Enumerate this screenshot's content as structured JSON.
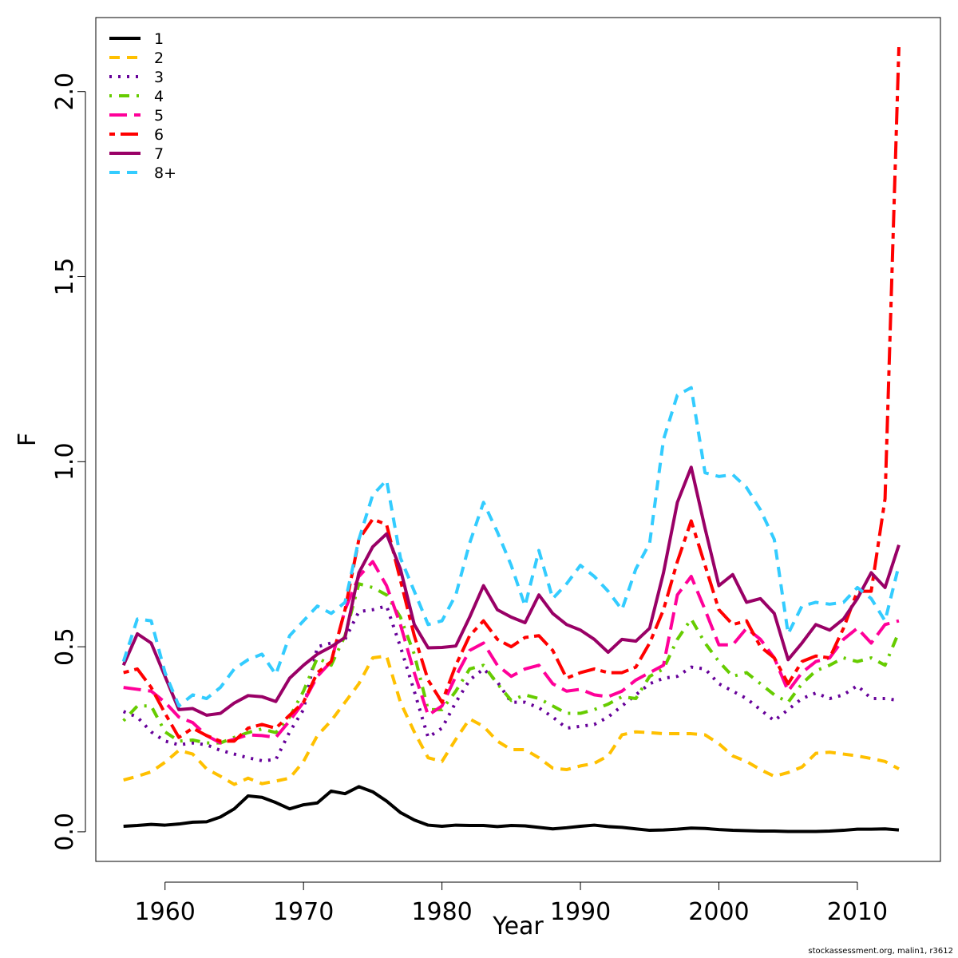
{
  "footer": "stockassessment.org, malin1, r3612",
  "chart_data": {
    "type": "line",
    "xlabel": "Year",
    "ylabel": "F",
    "xlim": [
      1955,
      2016
    ],
    "ylim": [
      -0.08,
      2.2
    ],
    "xticks": [
      1960,
      1970,
      1980,
      1990,
      2000,
      2010
    ],
    "yticks": [
      0.0,
      0.5,
      1.0,
      1.5,
      2.0
    ],
    "ytick_labels": [
      "0.0",
      "0.5",
      "1.0",
      "1.5",
      "2.0"
    ],
    "legend_position": "top-left",
    "grid": false,
    "x": [
      1957,
      1958,
      1959,
      1960,
      1961,
      1962,
      1963,
      1964,
      1965,
      1966,
      1967,
      1968,
      1969,
      1970,
      1971,
      1972,
      1973,
      1974,
      1975,
      1976,
      1977,
      1978,
      1979,
      1980,
      1981,
      1982,
      1983,
      1984,
      1985,
      1986,
      1987,
      1988,
      1989,
      1990,
      1991,
      1992,
      1993,
      1994,
      1995,
      1996,
      1997,
      1998,
      1999,
      2000,
      2001,
      2002,
      2003,
      2004,
      2005,
      2006,
      2007,
      2008,
      2009,
      2010,
      2011,
      2012,
      2013
    ],
    "series": [
      {
        "name": "1",
        "color": "#000000",
        "dash": "solid",
        "values": [
          0.015,
          0.017,
          0.02,
          0.018,
          0.021,
          0.026,
          0.027,
          0.04,
          0.062,
          0.097,
          0.093,
          0.079,
          0.062,
          0.073,
          0.078,
          0.11,
          0.103,
          0.122,
          0.108,
          0.083,
          0.052,
          0.032,
          0.018,
          0.015,
          0.018,
          0.017,
          0.017,
          0.014,
          0.017,
          0.016,
          0.012,
          0.008,
          0.011,
          0.015,
          0.018,
          0.014,
          0.012,
          0.008,
          0.004,
          0.005,
          0.007,
          0.01,
          0.009,
          0.006,
          0.004,
          0.003,
          0.002,
          0.002,
          0.001,
          0.001,
          0.001,
          0.002,
          0.004,
          0.007,
          0.007,
          0.008,
          0.005
        ]
      },
      {
        "name": "2",
        "color": "#ffc000",
        "dash": "dash",
        "values": [
          0.14,
          0.15,
          0.162,
          0.188,
          0.22,
          0.21,
          0.17,
          0.15,
          0.128,
          0.145,
          0.13,
          0.137,
          0.145,
          0.19,
          0.26,
          0.3,
          0.35,
          0.4,
          0.47,
          0.475,
          0.35,
          0.27,
          0.2,
          0.19,
          0.25,
          0.305,
          0.285,
          0.245,
          0.222,
          0.222,
          0.2,
          0.172,
          0.168,
          0.178,
          0.185,
          0.205,
          0.262,
          0.27,
          0.268,
          0.265,
          0.265,
          0.265,
          0.262,
          0.238,
          0.205,
          0.19,
          0.168,
          0.15,
          0.16,
          0.175,
          0.212,
          0.215,
          0.21,
          0.205,
          0.198,
          0.19,
          0.17
        ]
      },
      {
        "name": "3",
        "color": "#660099",
        "dash": "dot",
        "values": [
          0.325,
          0.31,
          0.27,
          0.245,
          0.235,
          0.24,
          0.235,
          0.22,
          0.21,
          0.2,
          0.192,
          0.195,
          0.27,
          0.33,
          0.5,
          0.51,
          0.52,
          0.595,
          0.6,
          0.61,
          0.5,
          0.38,
          0.255,
          0.28,
          0.35,
          0.41,
          0.44,
          0.405,
          0.35,
          0.35,
          0.335,
          0.31,
          0.28,
          0.285,
          0.29,
          0.31,
          0.34,
          0.37,
          0.4,
          0.415,
          0.42,
          0.445,
          0.44,
          0.4,
          0.38,
          0.36,
          0.33,
          0.3,
          0.33,
          0.36,
          0.375,
          0.36,
          0.37,
          0.395,
          0.36,
          0.36,
          0.355
        ]
      },
      {
        "name": "4",
        "color": "#66cc00",
        "dash": "dashdot",
        "values": [
          0.3,
          0.34,
          0.34,
          0.27,
          0.245,
          0.248,
          0.24,
          0.24,
          0.255,
          0.268,
          0.278,
          0.268,
          0.31,
          0.38,
          0.47,
          0.45,
          0.53,
          0.67,
          0.66,
          0.64,
          0.58,
          0.48,
          0.33,
          0.33,
          0.38,
          0.44,
          0.45,
          0.4,
          0.355,
          0.37,
          0.36,
          0.34,
          0.32,
          0.32,
          0.33,
          0.345,
          0.365,
          0.36,
          0.42,
          0.44,
          0.52,
          0.575,
          0.51,
          0.46,
          0.42,
          0.43,
          0.4,
          0.37,
          0.35,
          0.4,
          0.435,
          0.45,
          0.47,
          0.46,
          0.47,
          0.45,
          0.54
        ]
      },
      {
        "name": "5",
        "color": "#ff0099",
        "dash": "longdash",
        "values": [
          0.39,
          0.385,
          0.38,
          0.35,
          0.31,
          0.295,
          0.26,
          0.24,
          0.25,
          0.262,
          0.26,
          0.255,
          0.3,
          0.35,
          0.42,
          0.46,
          0.6,
          0.69,
          0.73,
          0.665,
          0.56,
          0.43,
          0.315,
          0.34,
          0.42,
          0.49,
          0.51,
          0.45,
          0.42,
          0.44,
          0.45,
          0.4,
          0.38,
          0.385,
          0.37,
          0.365,
          0.38,
          0.41,
          0.43,
          0.45,
          0.64,
          0.69,
          0.6,
          0.505,
          0.505,
          0.55,
          0.52,
          0.47,
          0.38,
          0.43,
          0.46,
          0.47,
          0.52,
          0.55,
          0.51,
          0.56,
          0.57
        ]
      },
      {
        "name": "6",
        "color": "#ff0000",
        "dash": "twodash",
        "values": [
          0.43,
          0.44,
          0.39,
          0.32,
          0.255,
          0.28,
          0.26,
          0.245,
          0.245,
          0.28,
          0.29,
          0.28,
          0.315,
          0.35,
          0.43,
          0.46,
          0.6,
          0.79,
          0.845,
          0.83,
          0.68,
          0.53,
          0.41,
          0.35,
          0.45,
          0.53,
          0.57,
          0.52,
          0.5,
          0.525,
          0.53,
          0.49,
          0.415,
          0.43,
          0.44,
          0.43,
          0.43,
          0.445,
          0.51,
          0.6,
          0.73,
          0.84,
          0.72,
          0.6,
          0.56,
          0.57,
          0.5,
          0.47,
          0.4,
          0.46,
          0.475,
          0.47,
          0.55,
          0.65,
          0.65,
          0.9,
          2.12
        ]
      },
      {
        "name": "7",
        "color": "#990066",
        "dash": "solid",
        "values": [
          0.45,
          0.535,
          0.51,
          0.42,
          0.33,
          0.333,
          0.315,
          0.32,
          0.348,
          0.368,
          0.365,
          0.352,
          0.415,
          0.45,
          0.48,
          0.5,
          0.525,
          0.7,
          0.77,
          0.805,
          0.71,
          0.56,
          0.497,
          0.498,
          0.502,
          0.58,
          0.665,
          0.6,
          0.58,
          0.565,
          0.64,
          0.59,
          0.56,
          0.545,
          0.52,
          0.485,
          0.52,
          0.515,
          0.55,
          0.7,
          0.89,
          0.985,
          0.82,
          0.665,
          0.695,
          0.62,
          0.63,
          0.59,
          0.465,
          0.51,
          0.56,
          0.545,
          0.575,
          0.63,
          0.7,
          0.66,
          0.775
        ]
      },
      {
        "name": "8+",
        "color": "#33ccff",
        "dash": "dash",
        "values": [
          0.46,
          0.575,
          0.57,
          0.43,
          0.34,
          0.37,
          0.36,
          0.39,
          0.44,
          0.465,
          0.48,
          0.425,
          0.53,
          0.57,
          0.61,
          0.59,
          0.62,
          0.79,
          0.91,
          0.95,
          0.74,
          0.65,
          0.56,
          0.57,
          0.64,
          0.78,
          0.89,
          0.81,
          0.72,
          0.61,
          0.76,
          0.63,
          0.67,
          0.72,
          0.69,
          0.65,
          0.6,
          0.71,
          0.78,
          1.06,
          1.18,
          1.2,
          0.97,
          0.96,
          0.965,
          0.93,
          0.87,
          0.79,
          0.535,
          0.61,
          0.62,
          0.615,
          0.62,
          0.66,
          0.63,
          0.57,
          0.72
        ]
      }
    ]
  }
}
